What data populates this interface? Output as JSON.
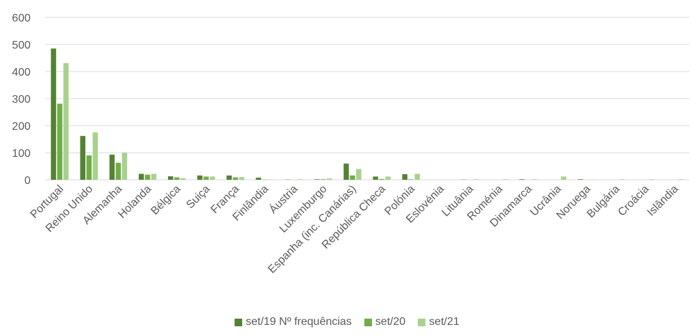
{
  "chart_data": {
    "type": "bar",
    "title": "",
    "xlabel": "",
    "ylabel": "",
    "ylim": [
      0,
      600
    ],
    "yticks": [
      0,
      100,
      200,
      300,
      400,
      500,
      600
    ],
    "grid": true,
    "legend_position": "bottom",
    "categories": [
      "Portugal",
      "Reino Unido",
      "Alemanha",
      "Holanda",
      "Bélgica",
      "Suiça",
      "França",
      "Finlândia",
      "Áustria",
      "Luxemburgo",
      "Espanha (inc. Canárias)",
      "República Checa",
      "Polónia",
      "Eslovénia",
      "Lituânia",
      "Roménia",
      "Dinamarca",
      "Ucrânia",
      "Noruega",
      "Bulgária",
      "Croácia",
      "Islândia"
    ],
    "series": [
      {
        "name": "set/19 Nº frequências",
        "color": "#548235",
        "values": [
          485,
          162,
          93,
          22,
          13,
          16,
          16,
          8,
          1,
          2,
          60,
          12,
          21,
          0,
          1,
          0,
          2,
          0,
          2,
          0,
          0,
          0
        ]
      },
      {
        "name": "set/20",
        "color": "#70ad47",
        "values": [
          281,
          90,
          63,
          19,
          9,
          12,
          9,
          1,
          0,
          2,
          16,
          3,
          2,
          0,
          0,
          0,
          0,
          0,
          0,
          0,
          0,
          0
        ]
      },
      {
        "name": "set/21",
        "color": "#a9d18e",
        "values": [
          431,
          175,
          100,
          22,
          6,
          12,
          10,
          1,
          2,
          5,
          40,
          12,
          22,
          0,
          2,
          2,
          2,
          12,
          1,
          2,
          2,
          2
        ]
      }
    ]
  }
}
